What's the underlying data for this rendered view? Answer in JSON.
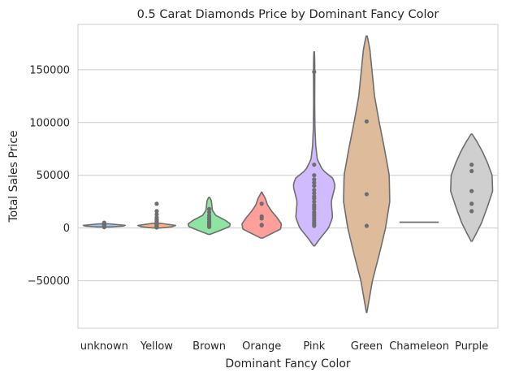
{
  "chart_data": {
    "type": "violin",
    "title": "0.5 Carat Diamonds Price by Dominant Fancy Color",
    "xlabel": "Dominant Fancy Color",
    "ylabel": "Total Sales Price",
    "ylim": [
      -95000,
      193000
    ],
    "yticks": [
      -50000,
      0,
      50000,
      100000,
      150000
    ],
    "ytick_labels": [
      "−50000",
      "0",
      "50000",
      "100000",
      "150000"
    ],
    "grid": "horizontal",
    "categories": [
      "unknown",
      "Yellow",
      "Brown",
      "Orange",
      "Pink",
      "Green",
      "Chameleon",
      "Purple"
    ],
    "violins": [
      {
        "category": "unknown",
        "color": "#a1c9f4",
        "min": 1000,
        "max": 4000,
        "profile": [
          [
            1000,
            0.2
          ],
          [
            1800,
            0.72
          ],
          [
            2500,
            0.8
          ],
          [
            3100,
            0.55
          ],
          [
            4000,
            0.15
          ]
        ],
        "points": [
          800,
          1200,
          1600,
          2000,
          2200,
          2400,
          2800,
          3200,
          3600,
          4100,
          5000
        ]
      },
      {
        "category": "Yellow",
        "color": "#ffb482",
        "min": 0,
        "max": 4500,
        "profile": [
          [
            0,
            0.12
          ],
          [
            1200,
            0.58
          ],
          [
            2400,
            0.72
          ],
          [
            3400,
            0.45
          ],
          [
            4500,
            0.12
          ]
        ],
        "points": [
          500,
          800,
          1200,
          1500,
          1800,
          2200,
          2600,
          3000,
          3600,
          4200,
          5200,
          6500,
          8000,
          10000,
          13000,
          16000,
          23000
        ]
      },
      {
        "category": "Brown",
        "color": "#8de5a1",
        "min": -6000,
        "max": 29000,
        "profile": [
          [
            -6000,
            0.04
          ],
          [
            -2000,
            0.45
          ],
          [
            1500,
            0.78
          ],
          [
            4000,
            0.8
          ],
          [
            7500,
            0.6
          ],
          [
            12000,
            0.25
          ],
          [
            17000,
            0.12
          ],
          [
            22000,
            0.1
          ],
          [
            26000,
            0.08
          ],
          [
            29000,
            0.02
          ]
        ],
        "points": [
          1000,
          2000,
          3000,
          4000,
          5000,
          6000,
          8000,
          10000,
          12000,
          15000,
          18000
        ]
      },
      {
        "category": "Orange",
        "color": "#ff9f9b",
        "min": -9500,
        "max": 34000,
        "profile": [
          [
            -9500,
            0.04
          ],
          [
            -6500,
            0.28
          ],
          [
            -1000,
            0.72
          ],
          [
            4000,
            0.75
          ],
          [
            10000,
            0.58
          ],
          [
            16000,
            0.38
          ],
          [
            22000,
            0.22
          ],
          [
            28000,
            0.14
          ],
          [
            32000,
            0.05
          ],
          [
            34000,
            0.01
          ]
        ],
        "points": [
          2500,
          3000,
          9000,
          11000,
          23000
        ]
      },
      {
        "category": "Pink",
        "color": "#d0bbff",
        "min": -17000,
        "max": 167000,
        "profile": [
          [
            -17000,
            0.02
          ],
          [
            -10000,
            0.22
          ],
          [
            0,
            0.55
          ],
          [
            10000,
            0.7
          ],
          [
            25000,
            0.65
          ],
          [
            40000,
            0.8
          ],
          [
            47000,
            0.72
          ],
          [
            55000,
            0.32
          ],
          [
            65000,
            0.12
          ],
          [
            78000,
            0.06
          ],
          [
            95000,
            0.03
          ],
          [
            120000,
            0.02
          ],
          [
            145000,
            0.025
          ],
          [
            160000,
            0.02
          ],
          [
            167000,
            0.01
          ]
        ],
        "points": [
          2000,
          3500,
          5000,
          7000,
          9000,
          11000,
          13000,
          15000,
          18000,
          20000,
          22000,
          25000,
          28000,
          30000,
          33000,
          36000,
          40000,
          43000,
          46000,
          50000,
          60000,
          148000
        ]
      },
      {
        "category": "Green",
        "color": "#debb9b",
        "min": -80000,
        "max": 182000,
        "profile": [
          [
            -80000,
            0.01
          ],
          [
            -70000,
            0.08
          ],
          [
            -50000,
            0.22
          ],
          [
            -25000,
            0.48
          ],
          [
            0,
            0.72
          ],
          [
            25000,
            0.88
          ],
          [
            50000,
            0.86
          ],
          [
            75000,
            0.68
          ],
          [
            100000,
            0.48
          ],
          [
            125000,
            0.3
          ],
          [
            150000,
            0.2
          ],
          [
            170000,
            0.12
          ],
          [
            182000,
            0.02
          ]
        ],
        "points": [
          2000,
          32000,
          101000
        ]
      },
      {
        "category": "Chameleon",
        "color": "#fab0e4",
        "line_only": true,
        "value": 5500,
        "line_width": 0.75,
        "points": []
      },
      {
        "category": "Purple",
        "color": "#cfcfcf",
        "min": -12500,
        "max": 89000,
        "profile": [
          [
            -12500,
            0.02
          ],
          [
            -5000,
            0.18
          ],
          [
            5000,
            0.38
          ],
          [
            20000,
            0.6
          ],
          [
            35000,
            0.8
          ],
          [
            50000,
            0.78
          ],
          [
            62000,
            0.6
          ],
          [
            72000,
            0.42
          ],
          [
            82000,
            0.2
          ],
          [
            89000,
            0.02
          ]
        ],
        "points": [
          16000,
          23000,
          35000,
          54000,
          60000
        ]
      }
    ]
  }
}
